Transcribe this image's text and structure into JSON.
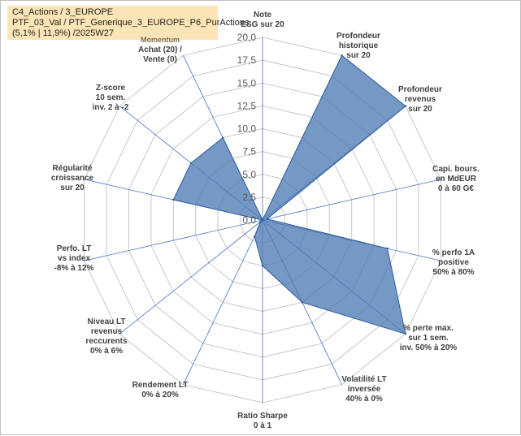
{
  "header": {
    "line1": "C4_Actions / 3_EUROPE",
    "line2": "PTF_03_Val / PTF_Generique_3_EUROPE_P6_PurActions",
    "line3": "(5,1% | 11,9%) /2025W27"
  },
  "chart_data": {
    "type": "radar",
    "rmax": 20,
    "ticks": [
      "0,0",
      "2,5",
      "5,0",
      "7,5",
      "10,0",
      "12,5",
      "15,0",
      "17,5",
      "20,0"
    ],
    "grid": true,
    "colors": {
      "fill": "#4f7bb5",
      "stroke": "#2e5c9c",
      "grid": "#c8c8c8",
      "spoke": "#4472c4"
    },
    "axes": [
      {
        "label": [
          "Note",
          "ESG sur 20"
        ],
        "value": 0
      },
      {
        "label": [
          "Profondeur",
          "historique",
          "sur 20"
        ],
        "value": 20
      },
      {
        "label": [
          "Profondeur",
          "revenus",
          "sur 20"
        ],
        "value": 20
      },
      {
        "label": [
          "Capi. bours.",
          "en MdEUR",
          "0 à 60 G€"
        ],
        "value": 0.5
      },
      {
        "label": [
          "% perfo 1A",
          "positive",
          "50% à 80%"
        ],
        "value": 14
      },
      {
        "label": [
          "% perte max.",
          "sur 1 sem.",
          "inv. 50% à 20%"
        ],
        "value": 20
      },
      {
        "label": [
          "Volatilité LT",
          "inversée",
          "40% à 0%"
        ],
        "value": 10
      },
      {
        "label": [
          "Ratio Sharpe",
          "0 à 1"
        ],
        "value": 5
      },
      {
        "label": [
          "Rendement LT",
          "0% à 20%"
        ],
        "value": 2
      },
      {
        "label": [
          "Niveau LT",
          "revenus",
          "reccurents",
          "0% à 6%"
        ],
        "value": 0.3
      },
      {
        "label": [
          "Perfo. LT",
          "vs index",
          "-8% à 12%"
        ],
        "value": 0
      },
      {
        "label": [
          "Régularité",
          "croissance",
          "sur 20"
        ],
        "value": 10
      },
      {
        "label": [
          "Z-score",
          "10 sem.",
          "inv. 2 à -2"
        ],
        "value": 10
      },
      {
        "label": [
          "Achat (20) /",
          "Vente (0)"
        ],
        "value": 10
      }
    ],
    "momentum_label": "Momentum"
  }
}
